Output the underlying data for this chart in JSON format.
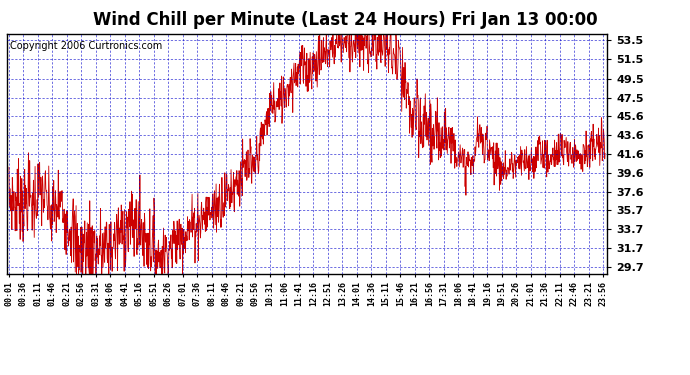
{
  "title": "Wind Chill per Minute (Last 24 Hours) Fri Jan 13 00:00",
  "copyright": "Copyright 2006 Curtronics.com",
  "yticks": [
    29.7,
    31.7,
    33.7,
    35.7,
    37.6,
    39.6,
    41.6,
    43.6,
    45.6,
    47.5,
    49.5,
    51.5,
    53.5
  ],
  "ymin": 29.0,
  "ymax": 54.2,
  "line_color": "#cc0000",
  "bg_color": "#ffffff",
  "grid_color": "#0000cc",
  "border_color": "#000000",
  "title_fontsize": 12,
  "copyright_fontsize": 7,
  "tick_fontsize": 8,
  "xtick_labels": [
    "00:01",
    "00:36",
    "01:11",
    "01:46",
    "02:21",
    "02:56",
    "03:31",
    "04:06",
    "04:41",
    "05:16",
    "05:51",
    "06:26",
    "07:01",
    "07:36",
    "08:11",
    "08:46",
    "09:21",
    "09:56",
    "10:31",
    "11:06",
    "11:41",
    "12:16",
    "12:51",
    "13:26",
    "14:01",
    "14:36",
    "15:11",
    "15:46",
    "16:21",
    "16:56",
    "17:31",
    "18:06",
    "18:41",
    "19:16",
    "19:51",
    "20:26",
    "21:01",
    "21:36",
    "22:11",
    "22:46",
    "23:21",
    "23:56"
  ]
}
